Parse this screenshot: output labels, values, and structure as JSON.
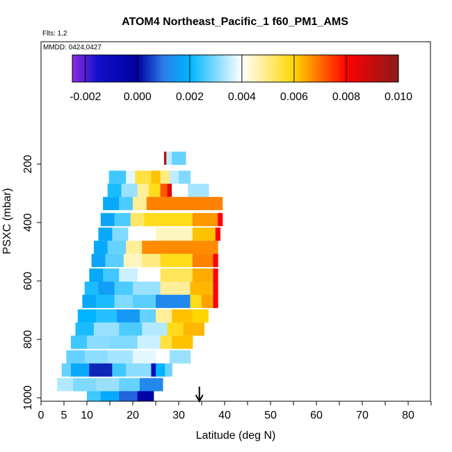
{
  "chart_data": {
    "type": "heatmap",
    "title": "ATOM4 Northeast_Pacific_1 f60_PM1_AMS",
    "flights_label": "Flts: 1,2",
    "dates_label": "MMDD: 0424,0427",
    "xlabel": "Latitude (deg N)",
    "ylabel": "PSXC (mbar)",
    "xlim": [
      0,
      85
    ],
    "ylim": [
      1000,
      0
    ],
    "x_ticks": [
      "0",
      "5",
      "10",
      "20",
      "30",
      "40",
      "50",
      "60",
      "70",
      "80"
    ],
    "x_tick_values": [
      0,
      5,
      10,
      20,
      30,
      40,
      50,
      60,
      70,
      80
    ],
    "y_ticks": [
      "200",
      "400",
      "600",
      "800",
      "1000"
    ],
    "y_tick_values": [
      200,
      400,
      600,
      800,
      1000
    ],
    "colorbar": {
      "min": -0.0025,
      "max": 0.01,
      "tick_labels": [
        "-0.002",
        "0.000",
        "0.002",
        "0.004",
        "0.006",
        "0.008",
        "0.010"
      ],
      "tick_values": [
        -0.002,
        0.0,
        0.002,
        0.004,
        0.006,
        0.008,
        0.01
      ],
      "stops": [
        {
          "v": -0.0025,
          "c": "#8a2be2"
        },
        {
          "v": -0.0015,
          "c": "#1010c8"
        },
        {
          "v": 0.0,
          "c": "#0000a0"
        },
        {
          "v": 0.001,
          "c": "#2a7de8"
        },
        {
          "v": 0.002,
          "c": "#00b4ff"
        },
        {
          "v": 0.004,
          "c": "#ffffff"
        },
        {
          "v": 0.006,
          "c": "#ffd700"
        },
        {
          "v": 0.008,
          "c": "#ff0000"
        },
        {
          "v": 0.01,
          "c": "#8b1a1a"
        }
      ]
    },
    "arrow_latitude": 34.5,
    "rows": [
      {
        "p": 180,
        "segments": [
          [
            26.8,
            27.3,
            0.0095
          ],
          [
            27.3,
            28.5,
            0.0035
          ],
          [
            28.5,
            31.5,
            0.0028
          ]
        ]
      },
      {
        "p": 245,
        "segments": [
          [
            14.8,
            18.5,
            0.0025
          ],
          [
            18.5,
            20.5,
            0.0038
          ],
          [
            20.5,
            24.0,
            0.0055
          ],
          [
            24.0,
            26.0,
            0.0062
          ],
          [
            26.0,
            28.0,
            0.005
          ],
          [
            28.0,
            30.0,
            0.0035
          ],
          [
            30.0,
            32.5,
            0.003
          ]
        ]
      },
      {
        "p": 290,
        "segments": [
          [
            14.5,
            17.5,
            0.0022
          ],
          [
            17.5,
            21.0,
            0.0032
          ],
          [
            21.0,
            23.5,
            0.0048
          ],
          [
            23.5,
            26.0,
            0.0058
          ],
          [
            26.0,
            27.5,
            0.0072
          ],
          [
            27.5,
            28.5,
            0.0085
          ],
          [
            28.5,
            32.0,
            0.004
          ],
          [
            32.0,
            36.5,
            0.0033
          ]
        ]
      },
      {
        "p": 335,
        "segments": [
          [
            13.5,
            17.0,
            0.0018
          ],
          [
            17.0,
            20.0,
            0.0026
          ],
          [
            20.0,
            23.0,
            0.0048
          ],
          [
            23.0,
            39.5,
            0.0068
          ]
        ]
      },
      {
        "p": 390,
        "segments": [
          [
            13.0,
            16.0,
            0.0017
          ],
          [
            16.0,
            19.5,
            0.0026
          ],
          [
            19.5,
            22.5,
            0.0052
          ],
          [
            22.5,
            33.0,
            0.0058
          ],
          [
            33.0,
            38.5,
            0.0066
          ],
          [
            38.5,
            39.5,
            0.008
          ]
        ]
      },
      {
        "p": 440,
        "segments": [
          [
            12.5,
            15.5,
            0.0018
          ],
          [
            15.5,
            19.0,
            0.003
          ],
          [
            19.0,
            25.0,
            0.004
          ],
          [
            25.0,
            33.0,
            0.0045
          ],
          [
            33.0,
            38.0,
            0.0062
          ],
          [
            38.0,
            39.0,
            0.008
          ]
        ]
      },
      {
        "p": 485,
        "segments": [
          [
            11.5,
            14.5,
            0.0018
          ],
          [
            14.5,
            18.5,
            0.0028
          ],
          [
            18.5,
            22.0,
            0.0048
          ],
          [
            22.0,
            38.5,
            0.0067
          ]
        ]
      },
      {
        "p": 530,
        "segments": [
          [
            11.0,
            14.0,
            0.0017
          ],
          [
            14.0,
            18.0,
            0.0027
          ],
          [
            18.0,
            22.0,
            0.0045
          ],
          [
            22.0,
            26.0,
            0.005
          ],
          [
            26.0,
            33.0,
            0.0058
          ],
          [
            33.0,
            37.5,
            0.0068
          ],
          [
            37.5,
            38.5,
            0.008
          ]
        ]
      },
      {
        "p": 580,
        "segments": [
          [
            10.5,
            13.5,
            0.0018
          ],
          [
            13.5,
            17.0,
            0.0025
          ],
          [
            17.0,
            21.0,
            0.0036
          ],
          [
            21.0,
            26.0,
            0.004
          ],
          [
            26.0,
            33.0,
            0.0053
          ],
          [
            33.0,
            37.5,
            0.0064
          ],
          [
            37.5,
            38.5,
            0.008
          ]
        ]
      },
      {
        "p": 625,
        "segments": [
          [
            9.5,
            12.5,
            0.0022
          ],
          [
            12.5,
            16.0,
            0.0016
          ],
          [
            16.0,
            20.0,
            0.0026
          ],
          [
            20.0,
            26.0,
            0.0032
          ],
          [
            26.0,
            32.5,
            0.0048
          ],
          [
            32.5,
            37.5,
            0.0063
          ],
          [
            37.5,
            38.5,
            0.008
          ]
        ]
      },
      {
        "p": 670,
        "segments": [
          [
            9.0,
            12.0,
            0.0018
          ],
          [
            12.0,
            16.0,
            0.0022
          ],
          [
            16.0,
            20.0,
            0.003
          ],
          [
            20.0,
            25.0,
            0.0027
          ],
          [
            25.0,
            32.5,
            0.0012
          ],
          [
            32.5,
            35.0,
            0.0058
          ],
          [
            35.0,
            37.5,
            0.0065
          ],
          [
            37.5,
            38.5,
            0.008
          ]
        ]
      },
      {
        "p": 720,
        "segments": [
          [
            8.0,
            12.0,
            0.002
          ],
          [
            12.0,
            16.5,
            0.0023
          ],
          [
            16.5,
            21.5,
            0.0015
          ],
          [
            21.5,
            25.0,
            0.0028
          ],
          [
            25.0,
            28.5,
            0.0048
          ],
          [
            28.5,
            33.0,
            0.0062
          ],
          [
            33.0,
            36.5,
            0.006
          ],
          [
            36.5,
            38.0,
            0.004
          ]
        ]
      },
      {
        "p": 765,
        "segments": [
          [
            7.5,
            11.5,
            0.0022
          ],
          [
            11.5,
            17.0,
            0.0032
          ],
          [
            17.0,
            22.0,
            0.0026
          ],
          [
            22.0,
            27.5,
            0.0034
          ],
          [
            27.5,
            31.0,
            0.0058
          ],
          [
            31.0,
            35.5,
            0.0063
          ]
        ]
      },
      {
        "p": 810,
        "segments": [
          [
            6.5,
            10.0,
            0.0025
          ],
          [
            10.0,
            15.0,
            0.0031
          ],
          [
            15.0,
            21.0,
            0.003
          ],
          [
            21.0,
            26.0,
            0.0036
          ],
          [
            26.0,
            28.5,
            0.0055
          ],
          [
            28.5,
            33.0,
            0.0062
          ]
        ]
      },
      {
        "p": 860,
        "segments": [
          [
            5.5,
            9.5,
            0.0028
          ],
          [
            9.5,
            14.5,
            0.0031
          ],
          [
            14.5,
            20.0,
            0.0033
          ],
          [
            20.0,
            25.0,
            0.0038
          ],
          [
            25.0,
            28.0,
            0.004
          ],
          [
            28.0,
            32.5,
            0.0032
          ]
        ]
      },
      {
        "p": 905,
        "segments": [
          [
            4.5,
            6.5,
            0.0028
          ],
          [
            6.5,
            10.5,
            0.0018
          ],
          [
            10.5,
            15.5,
            0.0003
          ],
          [
            15.5,
            18.5,
            0.0025
          ],
          [
            18.5,
            24.0,
            0.0031
          ],
          [
            24.0,
            25.0,
            -0.0012
          ],
          [
            25.0,
            27.0,
            0.002
          ],
          [
            27.0,
            28.5,
            0.0028
          ]
        ]
      },
      {
        "p": 955,
        "segments": [
          [
            3.5,
            7.0,
            0.0034
          ],
          [
            7.0,
            12.0,
            0.003
          ],
          [
            12.0,
            17.0,
            0.0032
          ],
          [
            17.0,
            21.5,
            0.0028
          ],
          [
            21.5,
            26.5,
            0.0012
          ]
        ]
      },
      {
        "p": 1000,
        "segments": [
          [
            10.0,
            13.0,
            0.0025
          ],
          [
            13.0,
            17.0,
            0.0018
          ],
          [
            17.0,
            21.0,
            0.0008
          ],
          [
            21.0,
            24.5,
            -0.0003
          ]
        ]
      }
    ]
  }
}
